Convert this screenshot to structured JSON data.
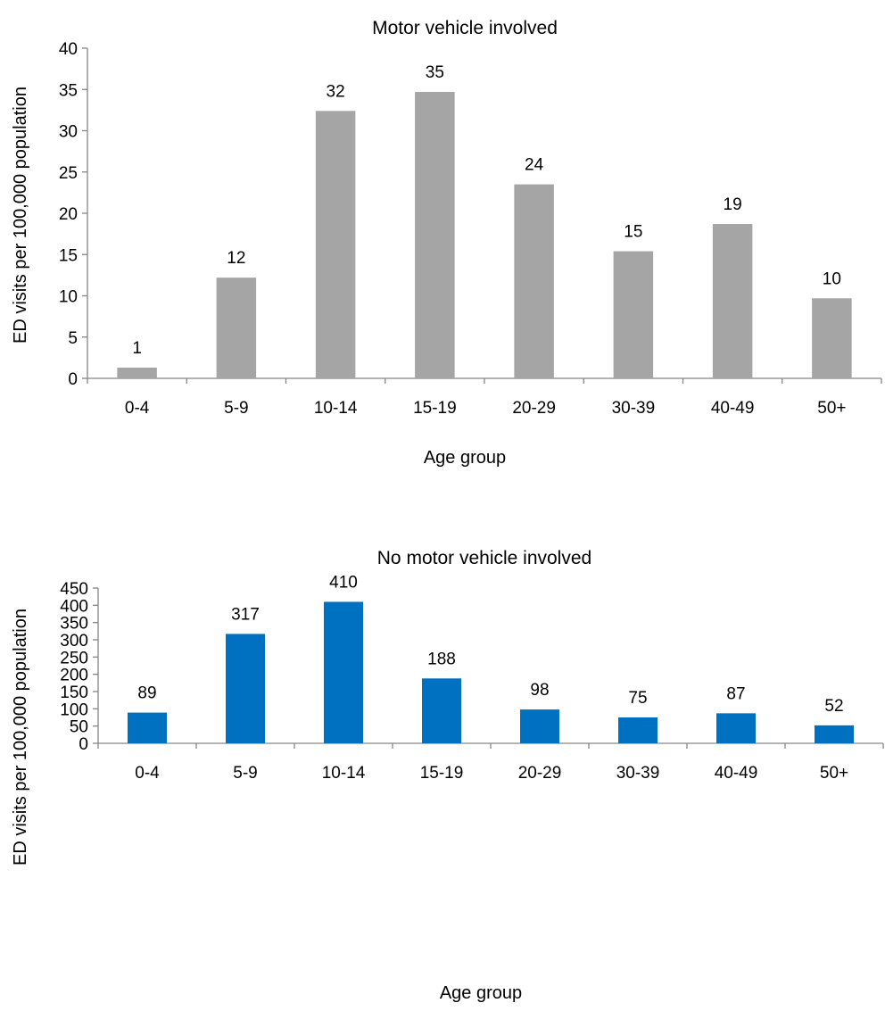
{
  "chart_data": [
    {
      "type": "bar",
      "title": "Motor vehicle involved",
      "xlabel": "Age group",
      "ylabel": "ED visits per 100,000 population",
      "categories": [
        "0-4",
        "5-9",
        "10-14",
        "15-19",
        "20-29",
        "30-39",
        "40-49",
        "50+"
      ],
      "values": [
        1.3,
        12.2,
        32.4,
        34.7,
        23.5,
        15.4,
        18.7,
        9.7
      ],
      "data_labels": [
        "1",
        "12",
        "32",
        "35",
        "24",
        "15",
        "19",
        "10"
      ],
      "ylim": [
        0,
        40
      ],
      "yticks": [
        "0",
        "5",
        "10",
        "15",
        "20",
        "25",
        "30",
        "35",
        "40"
      ],
      "bar_color": "#A5A5A5",
      "grid": false,
      "legend": "none"
    },
    {
      "type": "bar",
      "title": "No motor vehicle involved",
      "xlabel": "Age group",
      "ylabel": "ED visits per 100,000 population",
      "categories": [
        "0-4",
        "5-9",
        "10-14",
        "15-19",
        "20-29",
        "30-39",
        "40-49",
        "50+"
      ],
      "values": [
        89,
        317,
        410,
        188,
        98,
        75,
        87,
        52
      ],
      "data_labels": [
        "89",
        "317",
        "410",
        "188",
        "98",
        "75",
        "87",
        "52"
      ],
      "ylim": [
        0,
        450
      ],
      "yticks": [
        "0",
        "50",
        "100",
        "150",
        "200",
        "250",
        "300",
        "350",
        "400",
        "450"
      ],
      "bar_color": "#0070C0",
      "grid": false,
      "legend": "none"
    }
  ]
}
